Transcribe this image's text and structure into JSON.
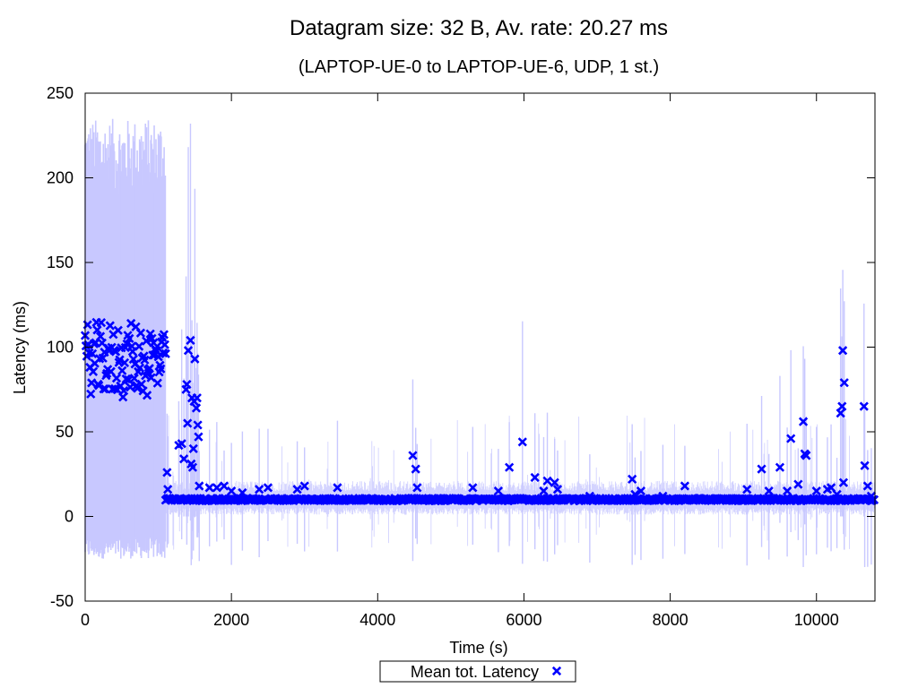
{
  "chart_data": {
    "type": "scatter",
    "title": "Datagram size: 32 B, Av. rate: 20.27 ms",
    "subtitle": "(LAPTOP-UE-0 to LAPTOP-UE-6, UDP, 1 st.)",
    "xlabel": "Time (s)",
    "ylabel": "Latency (ms)",
    "xlim": [
      0,
      10800
    ],
    "ylim": [
      -50,
      250
    ],
    "xticks": [
      0,
      2000,
      4000,
      6000,
      8000,
      10000
    ],
    "yticks": [
      -50,
      0,
      50,
      100,
      150,
      200,
      250
    ],
    "grid": false,
    "legend_position": "bottom-center",
    "colors": {
      "marker": "#0000ff",
      "band": "#c8c8ff",
      "axis": "#000000"
    },
    "series": [
      {
        "name": "Mean tot. Latency",
        "marker": "x"
      }
    ],
    "segments": [
      {
        "x_start": 0,
        "x_end": 1100,
        "mean_range": [
          68,
          121
        ],
        "band_low_range": [
          -25,
          -12
        ],
        "band_high_range": [
          190,
          235
        ]
      },
      {
        "x_start": 1100,
        "x_end": 10800,
        "baseline_mean": 10,
        "band_low_typical": 5,
        "band_high_typical": 15
      }
    ],
    "outliers": [
      [
        1120,
        26
      ],
      [
        1130,
        16
      ],
      [
        1280,
        42
      ],
      [
        1320,
        43
      ],
      [
        1350,
        34
      ],
      [
        1380,
        75
      ],
      [
        1390,
        78
      ],
      [
        1400,
        55
      ],
      [
        1410,
        98
      ],
      [
        1440,
        104
      ],
      [
        1450,
        31
      ],
      [
        1460,
        70
      ],
      [
        1470,
        29
      ],
      [
        1480,
        40
      ],
      [
        1490,
        68
      ],
      [
        1500,
        93
      ],
      [
        1520,
        64
      ],
      [
        1530,
        70
      ],
      [
        1540,
        54
      ],
      [
        1550,
        47
      ],
      [
        1560,
        18
      ],
      [
        1700,
        17
      ],
      [
        1800,
        17
      ],
      [
        1900,
        18
      ],
      [
        2000,
        15
      ],
      [
        2150,
        14
      ],
      [
        2380,
        16
      ],
      [
        2500,
        17
      ],
      [
        2900,
        16
      ],
      [
        3000,
        18
      ],
      [
        3450,
        17
      ],
      [
        4480,
        36
      ],
      [
        4520,
        28
      ],
      [
        4540,
        17
      ],
      [
        5300,
        17
      ],
      [
        5650,
        15
      ],
      [
        5800,
        29
      ],
      [
        5980,
        44
      ],
      [
        6150,
        23
      ],
      [
        6270,
        15
      ],
      [
        6320,
        21
      ],
      [
        6420,
        20
      ],
      [
        6460,
        16
      ],
      [
        6900,
        12
      ],
      [
        7480,
        22
      ],
      [
        7520,
        13
      ],
      [
        7600,
        15
      ],
      [
        7900,
        12
      ],
      [
        8200,
        18
      ],
      [
        9050,
        16
      ],
      [
        9250,
        28
      ],
      [
        9350,
        15
      ],
      [
        9500,
        29
      ],
      [
        9600,
        15
      ],
      [
        9650,
        46
      ],
      [
        9750,
        19
      ],
      [
        9820,
        56
      ],
      [
        9840,
        37
      ],
      [
        9860,
        36
      ],
      [
        10000,
        15
      ],
      [
        10150,
        16
      ],
      [
        10200,
        17
      ],
      [
        10280,
        13
      ],
      [
        10330,
        61
      ],
      [
        10350,
        65
      ],
      [
        10360,
        98
      ],
      [
        10370,
        20
      ],
      [
        10380,
        79
      ],
      [
        10650,
        65
      ],
      [
        10660,
        30
      ],
      [
        10700,
        18
      ],
      [
        10750,
        12
      ]
    ]
  }
}
